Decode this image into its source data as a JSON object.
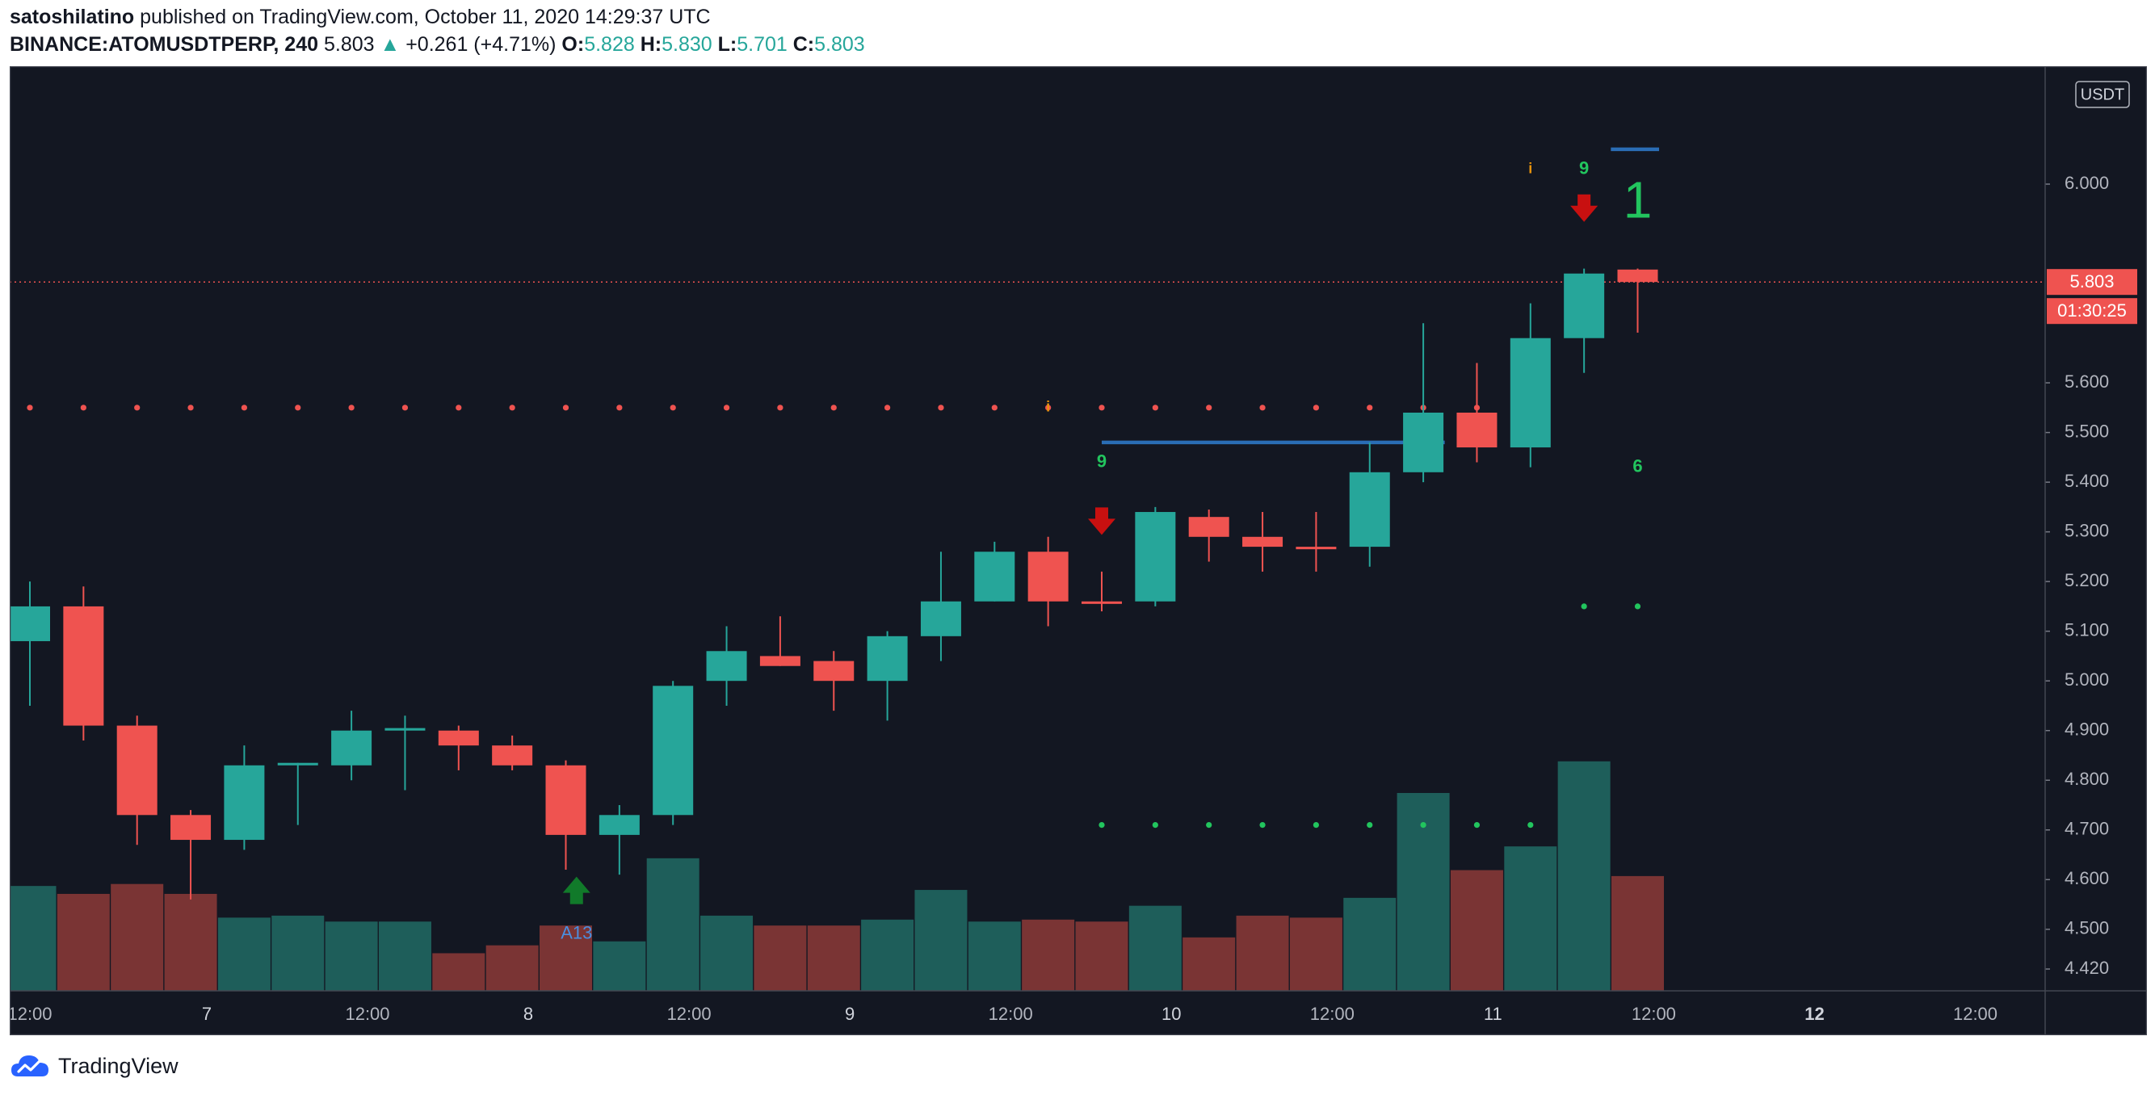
{
  "header": {
    "author": "satoshilatino",
    "published_text": "published on TradingView.com, October 11, 2020 14:29:37 UTC",
    "symbol": "BINANCE:ATOMUSDTPERP, 240",
    "last": "5.803",
    "change": "+0.261 (+4.71%)",
    "o_label": "O:",
    "o": "5.828",
    "h_label": "H:",
    "h": "5.830",
    "l_label": "L:",
    "l": "5.701",
    "c_label": "C:",
    "c": "5.803"
  },
  "footer": {
    "brand": "TradingView"
  },
  "colors": {
    "up": "#26a69a",
    "down": "#ef5350",
    "vol_up": "#1e5e5a",
    "vol_down": "#7a3434",
    "background": "#131722",
    "level": "#2a6db5",
    "signal_green": "#22c55e",
    "arrow_red": "#c81010",
    "arrow_green": "#117a2a"
  },
  "chart_data": {
    "type": "candlestick",
    "currency": "USDT",
    "last_price_label": "5.803",
    "countdown_label": "01:30:25",
    "y_ticks": [
      "6.000",
      "5.600",
      "5.500",
      "5.400",
      "5.300",
      "5.200",
      "5.100",
      "5.000",
      "4.900",
      "4.800",
      "4.700",
      "4.600",
      "4.500",
      "4.420"
    ],
    "y_tick_values": [
      6.0,
      5.6,
      5.5,
      5.4,
      5.3,
      5.2,
      5.1,
      5.0,
      4.9,
      4.8,
      4.7,
      4.6,
      4.5,
      4.42
    ],
    "x_ticks": [
      {
        "label": "12:00",
        "index": 0
      },
      {
        "label": "7",
        "index": 3.3
      },
      {
        "label": "12:00",
        "index": 6.3
      },
      {
        "label": "8",
        "index": 9.3
      },
      {
        "label": "12:00",
        "index": 12.3
      },
      {
        "label": "9",
        "index": 15.3
      },
      {
        "label": "12:00",
        "index": 18.3
      },
      {
        "label": "10",
        "index": 21.3
      },
      {
        "label": "12:00",
        "index": 24.3
      },
      {
        "label": "11",
        "index": 27.3
      },
      {
        "label": "12:00",
        "index": 30.3
      },
      {
        "label": "12",
        "index": 33.3
      },
      {
        "label": "12:00",
        "index": 36.3
      }
    ],
    "candles": [
      {
        "o": 5.08,
        "h": 5.2,
        "l": 4.95,
        "c": 5.15,
        "v": 0.53
      },
      {
        "o": 5.15,
        "h": 5.19,
        "l": 4.88,
        "c": 4.91,
        "v": 0.49
      },
      {
        "o": 4.91,
        "h": 4.93,
        "l": 4.67,
        "c": 4.73,
        "v": 0.54
      },
      {
        "o": 4.73,
        "h": 4.74,
        "l": 4.56,
        "c": 4.68,
        "v": 0.49
      },
      {
        "o": 4.68,
        "h": 4.87,
        "l": 4.66,
        "c": 4.83,
        "v": 0.37
      },
      {
        "o": 4.83,
        "h": 4.835,
        "l": 4.71,
        "c": 4.835,
        "v": 0.38
      },
      {
        "o": 4.83,
        "h": 4.94,
        "l": 4.8,
        "c": 4.9,
        "v": 0.35
      },
      {
        "o": 4.9,
        "h": 4.93,
        "l": 4.78,
        "c": 4.905,
        "v": 0.35
      },
      {
        "o": 4.9,
        "h": 4.91,
        "l": 4.82,
        "c": 4.87,
        "v": 0.19
      },
      {
        "o": 4.87,
        "h": 4.89,
        "l": 4.82,
        "c": 4.83,
        "v": 0.23
      },
      {
        "o": 4.83,
        "h": 4.84,
        "l": 4.62,
        "c": 4.69,
        "v": 0.33
      },
      {
        "o": 4.69,
        "h": 4.75,
        "l": 4.61,
        "c": 4.73,
        "v": 0.25
      },
      {
        "o": 4.73,
        "h": 5.0,
        "l": 4.71,
        "c": 4.99,
        "v": 0.67
      },
      {
        "o": 5.0,
        "h": 5.11,
        "l": 4.95,
        "c": 5.06,
        "v": 0.38
      },
      {
        "o": 5.05,
        "h": 5.13,
        "l": 5.03,
        "c": 5.03,
        "v": 0.33
      },
      {
        "o": 5.04,
        "h": 5.06,
        "l": 4.94,
        "c": 5.0,
        "v": 0.33
      },
      {
        "o": 5.0,
        "h": 5.1,
        "l": 4.92,
        "c": 5.09,
        "v": 0.36
      },
      {
        "o": 5.09,
        "h": 5.26,
        "l": 5.04,
        "c": 5.16,
        "v": 0.51
      },
      {
        "o": 5.16,
        "h": 5.28,
        "l": 5.16,
        "c": 5.26,
        "v": 0.35
      },
      {
        "o": 5.26,
        "h": 5.29,
        "l": 5.11,
        "c": 5.16,
        "v": 0.36
      },
      {
        "o": 5.16,
        "h": 5.22,
        "l": 5.14,
        "c": 5.155,
        "v": 0.35
      },
      {
        "o": 5.16,
        "h": 5.35,
        "l": 5.15,
        "c": 5.34,
        "v": 0.43
      },
      {
        "o": 5.33,
        "h": 5.345,
        "l": 5.24,
        "c": 5.29,
        "v": 0.27
      },
      {
        "o": 5.29,
        "h": 5.34,
        "l": 5.22,
        "c": 5.27,
        "v": 0.38
      },
      {
        "o": 5.27,
        "h": 5.34,
        "l": 5.22,
        "c": 5.265,
        "v": 0.37
      },
      {
        "o": 5.27,
        "h": 5.48,
        "l": 5.23,
        "c": 5.42,
        "v": 0.47
      },
      {
        "o": 5.42,
        "h": 5.72,
        "l": 5.4,
        "c": 5.54,
        "v": 1.0
      },
      {
        "o": 5.54,
        "h": 5.64,
        "l": 5.44,
        "c": 5.47,
        "v": 0.61
      },
      {
        "o": 5.47,
        "h": 5.76,
        "l": 5.43,
        "c": 5.69,
        "v": 0.73
      },
      {
        "o": 5.69,
        "h": 5.83,
        "l": 5.62,
        "c": 5.82,
        "v": 1.16
      },
      {
        "o": 5.828,
        "h": 5.83,
        "l": 5.701,
        "c": 5.803,
        "v": 0.58
      }
    ],
    "resistance_dots": {
      "price": 5.55,
      "from_index": 0,
      "to_index": 27
    },
    "support_dots": {
      "price": 4.71,
      "from_index": 20,
      "to_index": 28
    },
    "support_dots_2": {
      "price": 5.15,
      "from_index": 29,
      "to_index": 30
    },
    "level_lines": [
      {
        "price": 5.48,
        "from_index": 20,
        "to_index": 26.4
      },
      {
        "price": 6.07,
        "from_index": 29.5,
        "to_index": 30.4
      }
    ],
    "annotations": [
      {
        "text": "9",
        "index": 20,
        "price": 5.44,
        "kind": "count"
      },
      {
        "text": "9",
        "index": 29,
        "price": 6.03,
        "kind": "count"
      },
      {
        "text": "1",
        "index": 30,
        "price": 5.96,
        "kind": "big"
      },
      {
        "text": "6",
        "index": 30,
        "price": 5.43,
        "kind": "count"
      },
      {
        "text": "A13",
        "index": 10.2,
        "price": 4.49,
        "kind": "label"
      }
    ],
    "sell_arrows": [
      {
        "index": 20,
        "price": 5.32
      },
      {
        "index": 29,
        "price": 5.95
      }
    ],
    "buy_arrows": [
      {
        "index": 10.2,
        "price": 4.58
      }
    ],
    "markers": [
      {
        "text": "i",
        "index": 19,
        "price": 5.55
      },
      {
        "text": "i",
        "index": 28,
        "price": 6.03
      }
    ]
  }
}
